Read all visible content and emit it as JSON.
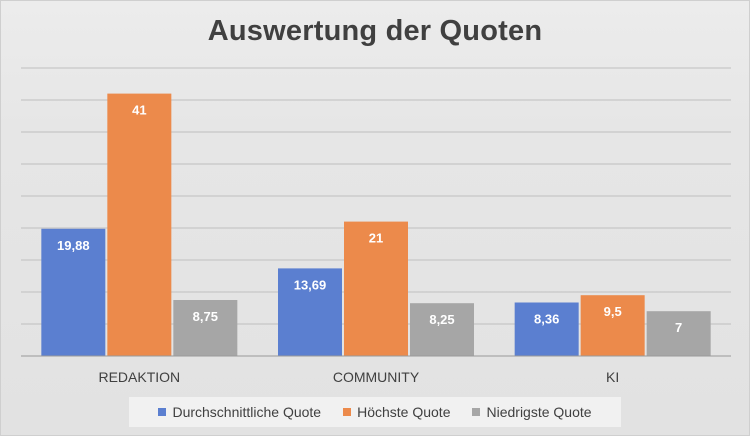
{
  "chart_data": {
    "type": "bar",
    "title": "Auswertung der Quoten",
    "xlabel": "",
    "ylabel": "",
    "ylim": [
      0,
      45
    ],
    "grid": true,
    "legend_position": "bottom",
    "categories": [
      "REDAKTION",
      "COMMUNITY",
      "KI"
    ],
    "series": [
      {
        "name": "Durchschnittliche Quote",
        "color": "#5b7fd0",
        "values": [
          19.88,
          13.69,
          8.36
        ],
        "labels": [
          "19,88",
          "13,69",
          "8,36"
        ]
      },
      {
        "name": "Höchste Quote",
        "color": "#ec8a4b",
        "values": [
          41,
          21,
          9.5
        ],
        "labels": [
          "41",
          "21",
          "9,5"
        ]
      },
      {
        "name": "Niedrigste Quote",
        "color": "#a6a6a6",
        "values": [
          8.75,
          8.25,
          7
        ],
        "labels": [
          "8,75",
          "8,25",
          "7"
        ]
      }
    ]
  }
}
